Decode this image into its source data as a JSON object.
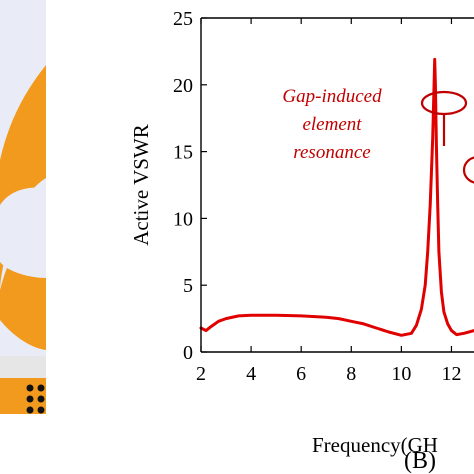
{
  "colors": {
    "curve": "#e00000",
    "annotation": "#c00000",
    "antenna_orange": "#f29a1e",
    "antenna_light": "#e9ecf6",
    "substrate": "#e6e6e6",
    "axis": "#000000"
  },
  "panel_label": "(B)",
  "annotation": {
    "lines": [
      "Gap-induced",
      "element",
      "resonance"
    ]
  },
  "chart_data": {
    "type": "line",
    "title": "",
    "xlabel": "Frequency(GH",
    "ylabel": "Active VSWR",
    "xlim": [
      2,
      12.9
    ],
    "ylim": [
      0,
      25
    ],
    "xticks": [
      2,
      4,
      6,
      8,
      10,
      12
    ],
    "xtick_labels": [
      "2",
      "4",
      "6",
      "8",
      "10",
      "12"
    ],
    "yticks": [
      0,
      5,
      10,
      15,
      20,
      25
    ],
    "ytick_labels": [
      "0",
      "5",
      "10",
      "15",
      "20",
      "25"
    ],
    "grid": false,
    "series": [
      {
        "x": [
          2.0,
          2.2,
          2.4,
          2.7,
          3.0,
          3.5,
          4.0,
          5.0,
          6.0,
          7.0,
          7.5,
          8.0,
          8.5,
          9.0,
          9.5,
          10.0,
          10.4,
          10.6,
          10.8,
          10.95,
          11.05,
          11.15,
          11.25,
          11.3,
          11.33,
          11.36,
          11.4,
          11.45,
          11.5,
          11.6,
          11.7,
          11.85,
          12.0,
          12.2,
          12.5,
          12.9
        ],
        "y": [
          1.8,
          1.6,
          1.9,
          2.3,
          2.5,
          2.7,
          2.75,
          2.75,
          2.7,
          2.6,
          2.5,
          2.3,
          2.1,
          1.8,
          1.5,
          1.25,
          1.4,
          2.0,
          3.2,
          5.0,
          7.5,
          11.0,
          16.0,
          19.5,
          21.9,
          20.0,
          15.5,
          11.0,
          7.5,
          4.5,
          3.0,
          2.1,
          1.6,
          1.3,
          1.4,
          1.6
        ]
      }
    ]
  }
}
